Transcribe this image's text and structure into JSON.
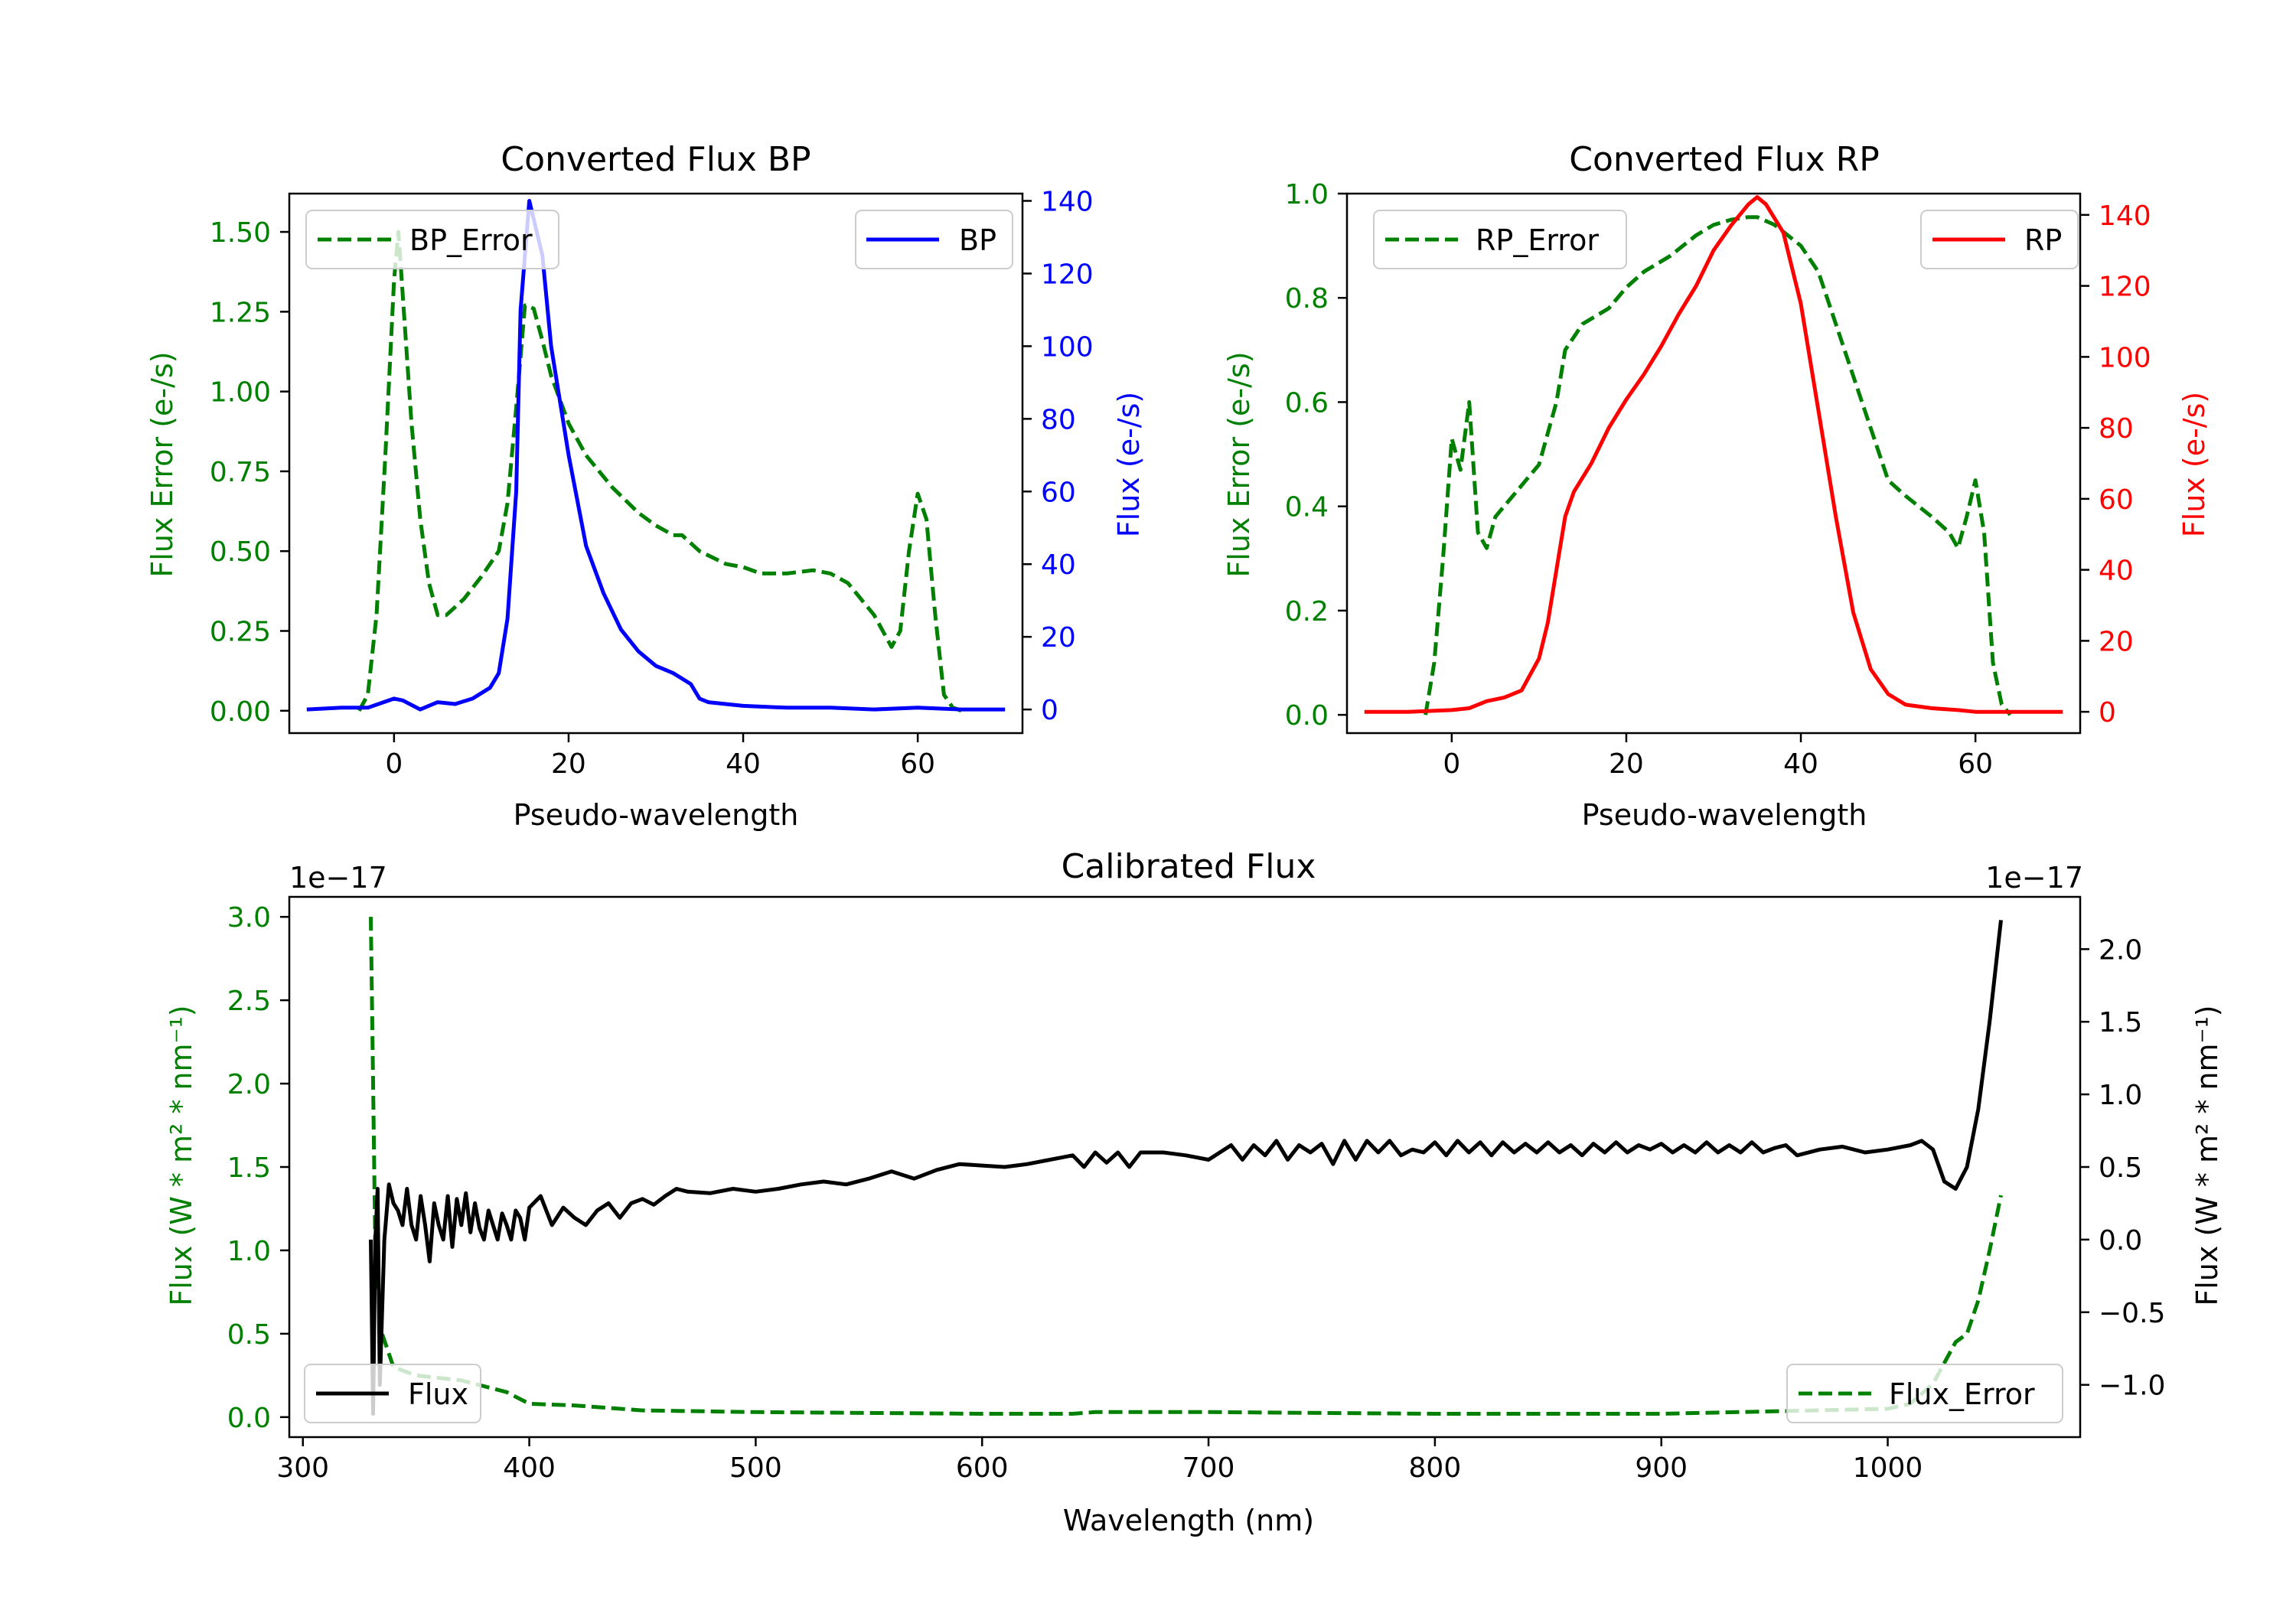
{
  "colors": {
    "green": "#008000",
    "blue": "#0000ff",
    "red": "#ff0000",
    "black": "#000000"
  },
  "chart_data": [
    {
      "type": "line",
      "title": "Converted Flux BP",
      "xlabel": "Pseudo-wavelength",
      "ylabel_left": "Flux Error (e-/s)",
      "ylabel_right": "Flux (e-/s)",
      "xlim": [
        -12,
        72
      ],
      "ylim_left": [
        -0.07,
        1.62
      ],
      "ylim_right": [
        -6.5,
        142
      ],
      "xticks": [
        0,
        20,
        40,
        60
      ],
      "xticklabels": [
        "0",
        "20",
        "40",
        "60"
      ],
      "yticks_left": [
        0,
        0.25,
        0.5,
        0.75,
        1.0,
        1.25,
        1.5
      ],
      "yticklabels_left": [
        "0.00",
        "0.25",
        "0.50",
        "0.75",
        "1.00",
        "1.25",
        "1.50"
      ],
      "yticks_right": [
        0,
        20,
        40,
        60,
        80,
        100,
        120,
        140
      ],
      "yticklabels_right": [
        "0",
        "20",
        "40",
        "60",
        "80",
        "100",
        "120",
        "140"
      ],
      "series": [
        {
          "name": "BP_Error",
          "axis": "left",
          "style": "dashed",
          "color": "green",
          "x": [
            -4,
            -3,
            -2,
            -1,
            0,
            0.5,
            1,
            2,
            3,
            4,
            5,
            6,
            8,
            10,
            12,
            13,
            14,
            15,
            16,
            17,
            18,
            20,
            22,
            25,
            28,
            30,
            32,
            33,
            35,
            38,
            40,
            42,
            45,
            48,
            50,
            52,
            55,
            57,
            58,
            59,
            60,
            61,
            62,
            63,
            64,
            65
          ],
          "y": [
            0.0,
            0.05,
            0.3,
            0.8,
            1.35,
            1.5,
            1.3,
            0.9,
            0.6,
            0.4,
            0.3,
            0.3,
            0.35,
            0.42,
            0.5,
            0.65,
            0.95,
            1.27,
            1.26,
            1.16,
            1.05,
            0.9,
            0.8,
            0.7,
            0.62,
            0.58,
            0.55,
            0.55,
            0.5,
            0.46,
            0.45,
            0.43,
            0.43,
            0.44,
            0.43,
            0.4,
            0.3,
            0.2,
            0.25,
            0.5,
            0.68,
            0.6,
            0.3,
            0.05,
            0.01,
            0.0
          ]
        },
        {
          "name": "BP",
          "axis": "right",
          "style": "solid",
          "color": "blue",
          "x": [
            -10,
            -6,
            -3,
            0,
            1,
            3,
            5,
            7,
            9,
            11,
            12,
            13,
            14,
            14.5,
            15,
            15.5,
            16,
            17,
            18,
            20,
            22,
            24,
            26,
            28,
            30,
            32,
            34,
            35,
            36,
            40,
            45,
            50,
            55,
            60,
            65,
            70
          ],
          "y": [
            0,
            0.5,
            0.5,
            3,
            2.5,
            0,
            2,
            1.5,
            3,
            6,
            10,
            25,
            60,
            110,
            125,
            140,
            135,
            125,
            100,
            70,
            45,
            32,
            22,
            16,
            12,
            10,
            7,
            3,
            2,
            1,
            0.5,
            0.5,
            0,
            0.5,
            0,
            0
          ]
        }
      ],
      "legends": [
        {
          "label": "BP_Error",
          "position": "upper left"
        },
        {
          "label": "BP",
          "position": "upper right"
        }
      ]
    },
    {
      "type": "line",
      "title": "Converted Flux RP",
      "xlabel": "Pseudo-wavelength",
      "ylabel_left": "Flux Error (e-/s)",
      "ylabel_right": "Flux (e-/s)",
      "xlim": [
        -12,
        72
      ],
      "ylim_left": [
        -0.035,
        1.0
      ],
      "ylim_right": [
        -6,
        146
      ],
      "xticks": [
        0,
        20,
        40,
        60
      ],
      "xticklabels": [
        "0",
        "20",
        "40",
        "60"
      ],
      "yticks_left": [
        0,
        0.2,
        0.4,
        0.6,
        0.8,
        1.0
      ],
      "yticklabels_left": [
        "0.0",
        "0.2",
        "0.4",
        "0.6",
        "0.8",
        "1.0"
      ],
      "yticks_right": [
        0,
        20,
        40,
        60,
        80,
        100,
        120,
        140
      ],
      "yticklabels_right": [
        "0",
        "20",
        "40",
        "60",
        "80",
        "100",
        "120",
        "140"
      ],
      "series": [
        {
          "name": "RP_Error",
          "axis": "left",
          "style": "dashed",
          "color": "green",
          "x": [
            -3,
            -2,
            -1,
            0,
            1,
            2,
            3,
            4,
            5,
            7,
            10,
            12,
            13,
            15,
            18,
            20,
            22,
            25,
            28,
            30,
            32,
            34,
            35,
            37,
            40,
            42,
            45,
            48,
            50,
            52,
            55,
            57,
            58,
            59,
            60,
            61,
            62,
            63,
            64
          ],
          "y": [
            0.0,
            0.1,
            0.3,
            0.53,
            0.47,
            0.6,
            0.35,
            0.32,
            0.38,
            0.42,
            0.48,
            0.6,
            0.7,
            0.75,
            0.78,
            0.82,
            0.85,
            0.88,
            0.92,
            0.94,
            0.95,
            0.955,
            0.955,
            0.94,
            0.9,
            0.85,
            0.7,
            0.55,
            0.45,
            0.42,
            0.38,
            0.35,
            0.32,
            0.38,
            0.45,
            0.35,
            0.1,
            0.02,
            0.0
          ]
        },
        {
          "name": "RP",
          "axis": "right",
          "style": "solid",
          "color": "red",
          "x": [
            -10,
            -5,
            0,
            2,
            4,
            6,
            8,
            10,
            11,
            12,
            13,
            14,
            16,
            18,
            20,
            22,
            24,
            26,
            28,
            30,
            32,
            34,
            35,
            36,
            38,
            40,
            42,
            44,
            46,
            48,
            50,
            52,
            55,
            58,
            60,
            65,
            70
          ],
          "y": [
            0,
            0,
            0.5,
            1,
            3,
            4,
            6,
            15,
            25,
            40,
            55,
            62,
            70,
            80,
            88,
            95,
            103,
            112,
            120,
            130,
            137,
            143,
            145,
            143,
            135,
            115,
            85,
            55,
            28,
            12,
            5,
            2,
            1,
            0.5,
            0,
            0,
            0
          ]
        }
      ],
      "legends": [
        {
          "label": "RP_Error",
          "position": "upper left"
        },
        {
          "label": "RP",
          "position": "upper right"
        }
      ]
    },
    {
      "type": "line",
      "title": "Calibrated Flux",
      "xlabel": "Wavelength (nm)",
      "ylabel_left": "Flux (W * m² * nm⁻¹)",
      "ylabel_right": "Flux (W * m² * nm⁻¹)",
      "offset_left": "1e−17",
      "offset_right": "1e−17",
      "xlim": [
        294,
        1085
      ],
      "ylim_left": [
        -0.12,
        3.12
      ],
      "ylim_right": [
        -1.36,
        2.36
      ],
      "xticks": [
        300,
        400,
        500,
        600,
        700,
        800,
        900,
        1000
      ],
      "xticklabels": [
        "300",
        "400",
        "500",
        "600",
        "700",
        "800",
        "900",
        "1000"
      ],
      "yticks_left": [
        0,
        0.5,
        1.0,
        1.5,
        2.0,
        2.5,
        3.0
      ],
      "yticklabels_left": [
        "0.0",
        "0.5",
        "1.0",
        "1.5",
        "2.0",
        "2.5",
        "3.0"
      ],
      "yticks_right": [
        -1.0,
        -0.5,
        0.0,
        0.5,
        1.0,
        1.5,
        2.0
      ],
      "yticklabels_right": [
        "−1.0",
        "−0.5",
        "0.0",
        "0.5",
        "1.0",
        "1.5",
        "2.0"
      ],
      "series": [
        {
          "name": "Flux_Error",
          "axis": "left",
          "style": "dashed",
          "color": "green",
          "x": [
            330,
            331,
            332,
            335,
            340,
            350,
            370,
            390,
            400,
            420,
            450,
            500,
            600,
            640,
            650,
            700,
            800,
            900,
            1000,
            1010,
            1020,
            1030,
            1035,
            1040,
            1045,
            1050
          ],
          "y": [
            3.0,
            2.0,
            1.0,
            0.5,
            0.3,
            0.25,
            0.22,
            0.15,
            0.08,
            0.07,
            0.04,
            0.03,
            0.02,
            0.02,
            0.03,
            0.03,
            0.02,
            0.02,
            0.05,
            0.08,
            0.2,
            0.45,
            0.5,
            0.7,
            1.0,
            1.33
          ]
        },
        {
          "name": "Flux",
          "axis": "right",
          "style": "solid",
          "color": "black",
          "x": [
            330,
            331,
            332,
            333,
            334,
            336,
            338,
            340,
            342,
            344,
            346,
            348,
            350,
            352,
            354,
            356,
            358,
            360,
            362,
            364,
            366,
            368,
            370,
            372,
            374,
            376,
            378,
            380,
            382,
            384,
            386,
            388,
            390,
            392,
            394,
            396,
            398,
            400,
            405,
            410,
            415,
            420,
            425,
            430,
            435,
            440,
            445,
            450,
            455,
            460,
            465,
            470,
            480,
            490,
            500,
            510,
            520,
            530,
            540,
            550,
            560,
            570,
            580,
            590,
            600,
            610,
            620,
            630,
            640,
            645,
            650,
            655,
            660,
            665,
            670,
            680,
            690,
            700,
            705,
            710,
            715,
            720,
            725,
            730,
            735,
            740,
            745,
            750,
            755,
            760,
            765,
            770,
            775,
            780,
            785,
            790,
            795,
            800,
            805,
            810,
            815,
            820,
            825,
            830,
            835,
            840,
            845,
            850,
            855,
            860,
            865,
            870,
            875,
            880,
            885,
            890,
            895,
            900,
            905,
            910,
            915,
            920,
            925,
            930,
            935,
            940,
            945,
            950,
            955,
            960,
            970,
            980,
            990,
            1000,
            1010,
            1015,
            1020,
            1025,
            1030,
            1035,
            1040,
            1045,
            1050
          ],
          "y": [
            0.0,
            -1.2,
            0.0,
            0.35,
            -1.0,
            0.0,
            0.38,
            0.25,
            0.2,
            0.1,
            0.35,
            0.1,
            0.0,
            0.3,
            0.1,
            -0.15,
            0.25,
            0.1,
            0.0,
            0.3,
            -0.05,
            0.28,
            0.1,
            0.32,
            0.05,
            0.25,
            0.08,
            0.0,
            0.2,
            0.1,
            0.0,
            0.18,
            0.1,
            0.0,
            0.2,
            0.15,
            0.0,
            0.22,
            0.3,
            0.1,
            0.22,
            0.15,
            0.1,
            0.2,
            0.25,
            0.15,
            0.25,
            0.28,
            0.24,
            0.3,
            0.35,
            0.33,
            0.32,
            0.35,
            0.33,
            0.35,
            0.38,
            0.4,
            0.38,
            0.42,
            0.47,
            0.42,
            0.48,
            0.52,
            0.51,
            0.5,
            0.52,
            0.55,
            0.58,
            0.5,
            0.6,
            0.53,
            0.6,
            0.5,
            0.6,
            0.6,
            0.58,
            0.55,
            0.6,
            0.65,
            0.55,
            0.65,
            0.58,
            0.68,
            0.55,
            0.65,
            0.6,
            0.66,
            0.52,
            0.68,
            0.55,
            0.68,
            0.6,
            0.68,
            0.58,
            0.62,
            0.6,
            0.67,
            0.58,
            0.68,
            0.6,
            0.67,
            0.58,
            0.67,
            0.6,
            0.66,
            0.6,
            0.67,
            0.6,
            0.65,
            0.58,
            0.66,
            0.6,
            0.67,
            0.6,
            0.65,
            0.62,
            0.66,
            0.6,
            0.65,
            0.6,
            0.67,
            0.6,
            0.65,
            0.6,
            0.67,
            0.6,
            0.63,
            0.65,
            0.58,
            0.62,
            0.64,
            0.6,
            0.62,
            0.65,
            0.68,
            0.62,
            0.4,
            0.35,
            0.5,
            0.9,
            1.5,
            2.2
          ]
        }
      ],
      "legends": [
        {
          "label": "Flux",
          "position": "lower left"
        },
        {
          "label": "Flux_Error",
          "position": "lower right"
        }
      ]
    }
  ]
}
